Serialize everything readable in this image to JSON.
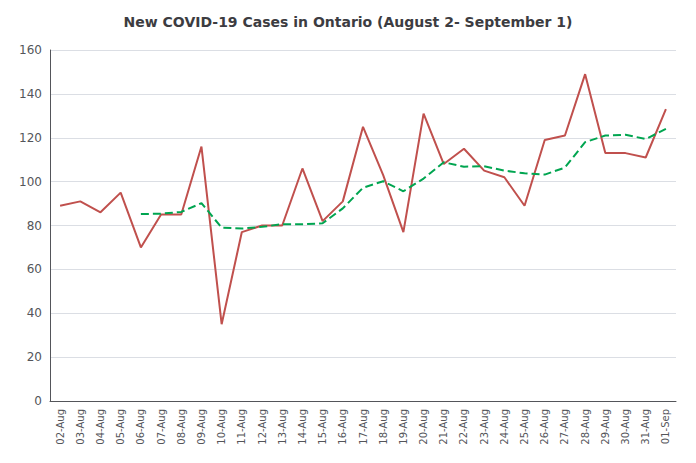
{
  "chart_data": {
    "type": "line",
    "title": "New COVID-19 Cases in Ontario (August 2- September 1)",
    "categories": [
      "02-Aug",
      "03-Aug",
      "04-Aug",
      "05-Aug",
      "06-Aug",
      "07-Aug",
      "08-Aug",
      "09-Aug",
      "10-Aug",
      "11-Aug",
      "12-Aug",
      "13-Aug",
      "14-Aug",
      "15-Aug",
      "16-Aug",
      "17-Aug",
      "18-Aug",
      "19-Aug",
      "20-Aug",
      "21-Aug",
      "22-Aug",
      "23-Aug",
      "24-Aug",
      "25-Aug",
      "26-Aug",
      "27-Aug",
      "28-Aug",
      "29-Aug",
      "30-Aug",
      "31-Aug",
      "01-Sep"
    ],
    "series": [
      {
        "color": "#c0504d",
        "line_style": "solid",
        "values": [
          89,
          91,
          86,
          95,
          70,
          85,
          85,
          116,
          35,
          77,
          80,
          80,
          106,
          82,
          91,
          125,
          103,
          77,
          131,
          108,
          115,
          105,
          102,
          89,
          119,
          121,
          149,
          113,
          113,
          111,
          133
        ]
      },
      {
        "color": "#00a550",
        "line_style": "dashed",
        "values": [
          null,
          null,
          null,
          null,
          85.2,
          85.4,
          86.2,
          90.2,
          79.0,
          78.6,
          79.4,
          80.6,
          80.6,
          81.0,
          87.8,
          97.2,
          100.2,
          95.6,
          101.4,
          108.8,
          106.8,
          107.0,
          105.0,
          103.8,
          103.2,
          106.4,
          118.0,
          121.0,
          121.4,
          119.4,
          124.0
        ]
      }
    ],
    "ylim": [
      0,
      160
    ],
    "yticks": [
      0,
      20,
      40,
      60,
      80,
      100,
      120,
      140,
      160
    ],
    "grid": true
  }
}
